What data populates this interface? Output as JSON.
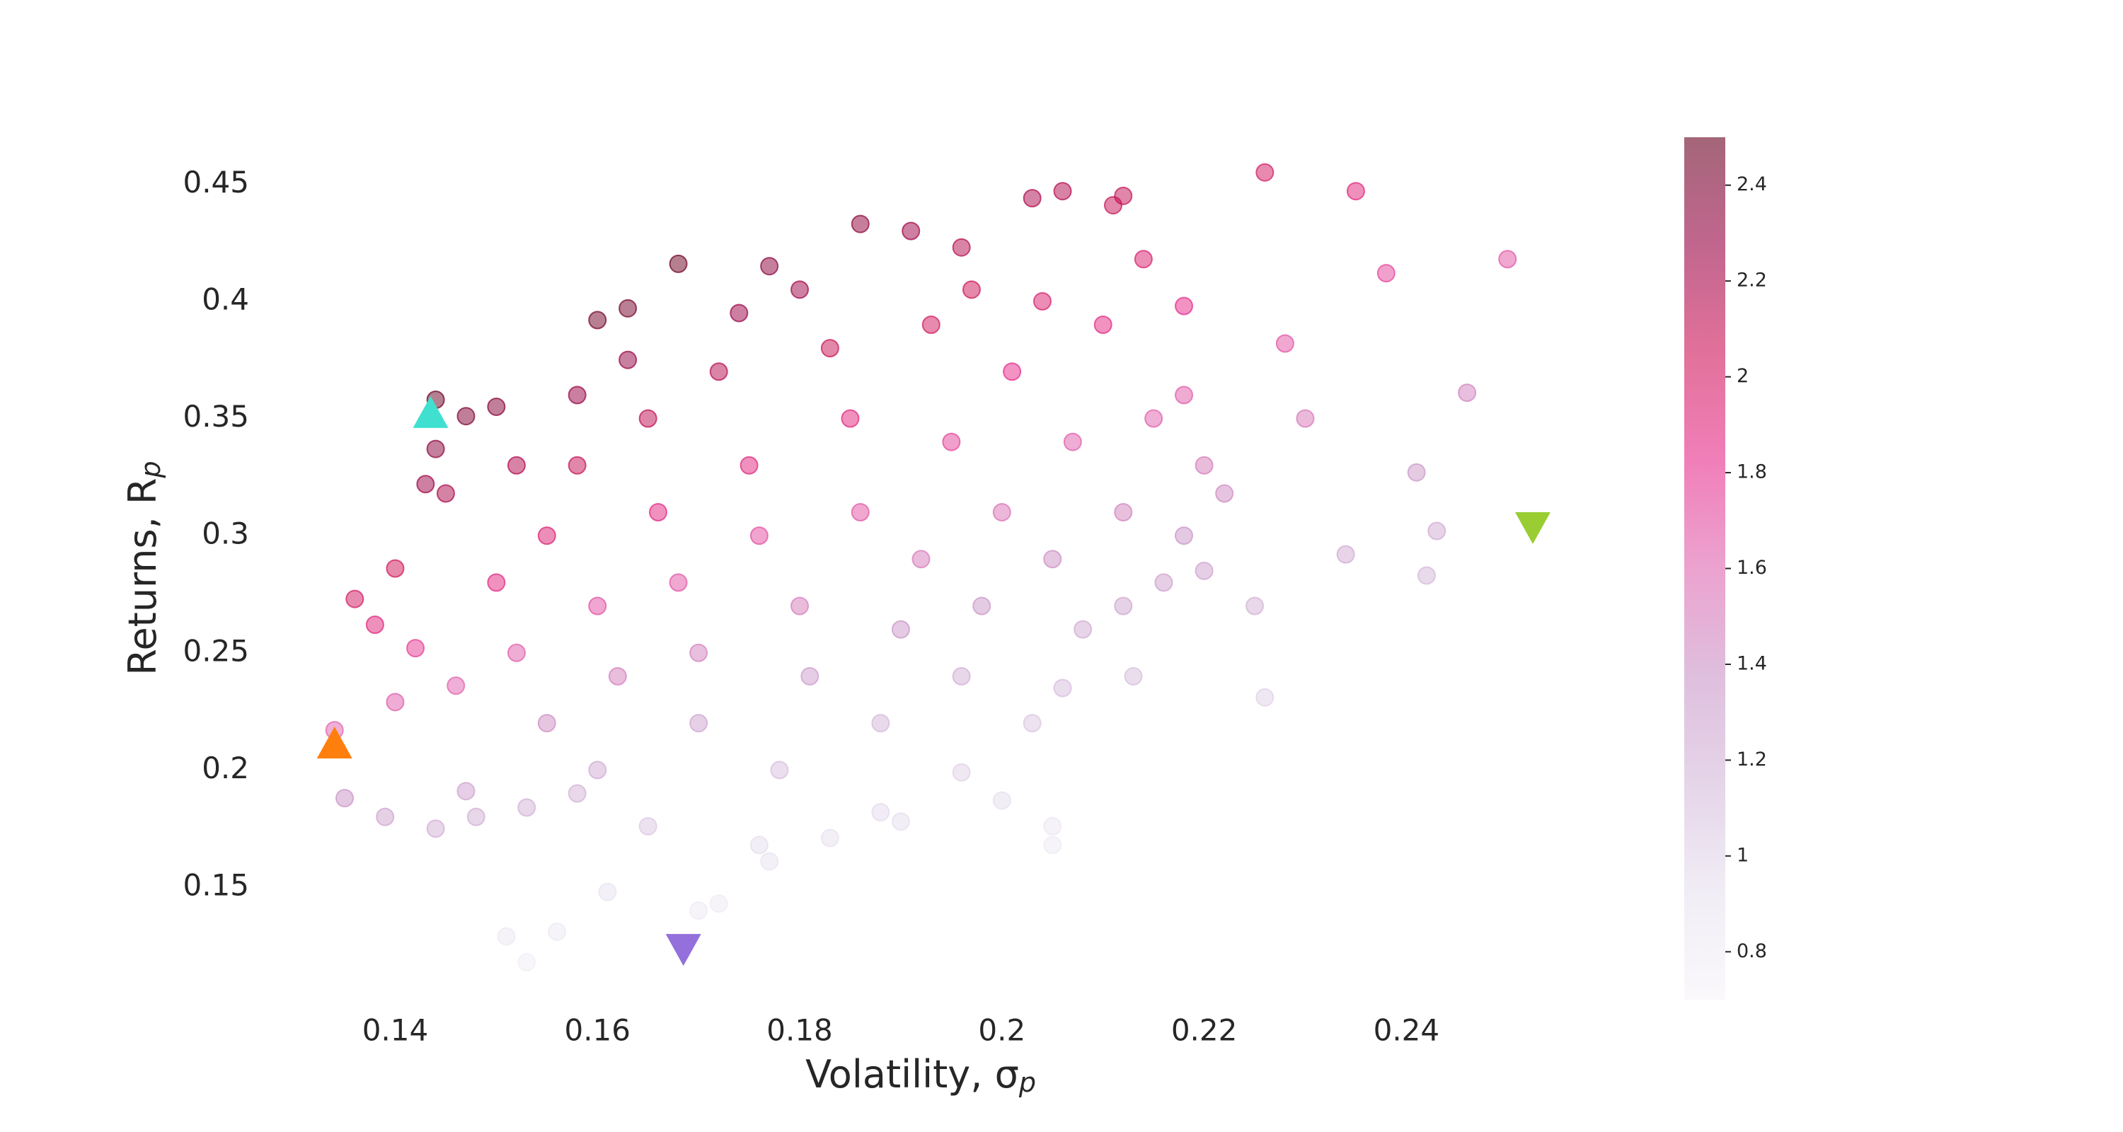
{
  "chart_data": {
    "type": "scatter",
    "xlabel": "Volatility, σ",
    "xlabel_subscript": "p",
    "ylabel": "Returns, R",
    "ylabel_subscript": "p",
    "xlim": [
      0.128,
      0.256
    ],
    "ylim": [
      0.102,
      0.47
    ],
    "xticks": [
      0.14,
      0.16,
      0.18,
      0.2,
      0.22,
      0.24
    ],
    "yticks": [
      0.15,
      0.2,
      0.25,
      0.3,
      0.35,
      0.4,
      0.45
    ],
    "colormap": "PuRd",
    "alpha": 0.5,
    "clim": [
      0.7,
      2.5
    ],
    "cticks": [
      0.8,
      1.0,
      1.2,
      1.4,
      1.6,
      1.8,
      2.0,
      2.2,
      2.4
    ],
    "series": [
      {
        "x": [
          0.136,
          0.134,
          0.135,
          0.139,
          0.138,
          0.14,
          0.143,
          0.144,
          0.144,
          0.147,
          0.145,
          0.15,
          0.16,
          0.163,
          0.168,
          0.177,
          0.186,
          0.191,
          0.196,
          0.203,
          0.206,
          0.211,
          0.212,
          0.226,
          0.235,
          0.25,
          0.238,
          0.246,
          0.241,
          0.243,
          0.242,
          0.234,
          0.226,
          0.225,
          0.22,
          0.222,
          0.23,
          0.228,
          0.218,
          0.214,
          0.205,
          0.205,
          0.2,
          0.196,
          0.19,
          0.177,
          0.172,
          0.17,
          0.161,
          0.156,
          0.153,
          0.151,
          0.148,
          0.144,
          0.147,
          0.14,
          0.142,
          0.146,
          0.153,
          0.158,
          0.165,
          0.176,
          0.183,
          0.188,
          0.155,
          0.158,
          0.16,
          0.162,
          0.165,
          0.166,
          0.168,
          0.17,
          0.17,
          0.172,
          0.175,
          0.176,
          0.178,
          0.18,
          0.181,
          0.183,
          0.185,
          0.186,
          0.188,
          0.19,
          0.192,
          0.193,
          0.195,
          0.196,
          0.198,
          0.2,
          0.201,
          0.203,
          0.205,
          0.207,
          0.208,
          0.21,
          0.212,
          0.213,
          0.215,
          0.216,
          0.163,
          0.158,
          0.152,
          0.15,
          0.152,
          0.155,
          0.16,
          0.174,
          0.18,
          0.197,
          0.204,
          0.218,
          0.22,
          0.218,
          0.212,
          0.206
        ],
        "values": [
          0.273,
          0.217,
          0.188,
          0.18,
          0.262,
          0.286,
          0.322,
          0.358,
          0.337,
          0.351,
          0.318,
          0.355,
          0.392,
          0.397,
          0.416,
          0.415,
          0.433,
          0.43,
          0.423,
          0.444,
          0.447,
          0.441,
          0.445,
          0.455,
          0.447,
          0.418,
          0.412,
          0.361,
          0.327,
          0.302,
          0.283,
          0.292,
          0.231,
          0.27,
          0.285,
          0.318,
          0.35,
          0.382,
          0.398,
          0.418,
          0.176,
          0.168,
          0.187,
          0.199,
          0.178,
          0.161,
          0.143,
          0.14,
          0.148,
          0.131,
          0.118,
          0.129,
          0.18,
          0.175,
          0.191,
          0.229,
          0.252,
          0.236,
          0.184,
          0.19,
          0.176,
          0.168,
          0.171,
          0.182,
          0.3,
          0.33,
          0.27,
          0.24,
          0.35,
          0.31,
          0.28,
          0.22,
          0.25,
          0.37,
          0.33,
          0.3,
          0.2,
          0.27,
          0.24,
          0.38,
          0.35,
          0.31,
          0.22,
          0.26,
          0.29,
          0.39,
          0.34,
          0.24,
          0.27,
          0.31,
          0.37,
          0.22,
          0.29,
          0.34,
          0.26,
          0.39,
          0.31,
          0.24,
          0.35,
          0.28,
          0.375,
          0.36,
          0.33,
          0.28,
          0.25,
          0.22,
          0.2,
          0.395,
          0.405,
          0.405,
          0.4,
          0.36,
          0.33,
          0.3,
          0.27,
          0.235
        ],
        "c": [
          2.01,
          1.62,
          1.39,
          1.29,
          1.9,
          2.04,
          2.25,
          2.49,
          2.34,
          2.39,
          2.19,
          2.37,
          2.45,
          2.44,
          2.48,
          2.34,
          2.33,
          2.25,
          2.16,
          2.19,
          2.17,
          2.09,
          2.1,
          2.01,
          1.9,
          1.67,
          1.73,
          1.47,
          1.36,
          1.24,
          1.17,
          1.25,
          1.02,
          1.2,
          1.3,
          1.43,
          1.52,
          1.68,
          1.83,
          1.95,
          0.86,
          0.82,
          0.94,
          1.02,
          0.94,
          0.91,
          0.83,
          0.82,
          0.92,
          0.84,
          0.77,
          0.85,
          1.22,
          1.22,
          1.3,
          1.64,
          1.77,
          1.62,
          1.2,
          1.2,
          1.07,
          0.95,
          0.93,
          0.97,
          1.94,
          2.09,
          1.69,
          1.48,
          2.12,
          1.87,
          1.67,
          1.29,
          1.47,
          2.15,
          1.89,
          1.7,
          1.12,
          1.5,
          1.33,
          2.08,
          1.89,
          1.67,
          1.17,
          1.37,
          1.51,
          2.02,
          1.74,
          1.22,
          1.36,
          1.55,
          1.84,
          1.08,
          1.41,
          1.64,
          1.25,
          1.86,
          1.46,
          1.13,
          1.63,
          1.3,
          2.3,
          2.28,
          2.17,
          1.87,
          1.64,
          1.42,
          1.25,
          2.27,
          2.25,
          2.06,
          1.96,
          1.65,
          1.5,
          1.38,
          1.27,
          1.14
        ]
      }
    ],
    "markers": [
      {
        "x": 0.134,
        "y": 0.211,
        "color": "#ff7f0e",
        "marker": "^"
      },
      {
        "x": 0.1435,
        "y": 0.352,
        "color": "#40e0d0",
        "marker": "^"
      },
      {
        "x": 0.2525,
        "y": 0.304,
        "color": "#9acd32",
        "marker": "v"
      },
      {
        "x": 0.1685,
        "y": 0.124,
        "color": "#9370db",
        "marker": "v"
      }
    ]
  }
}
